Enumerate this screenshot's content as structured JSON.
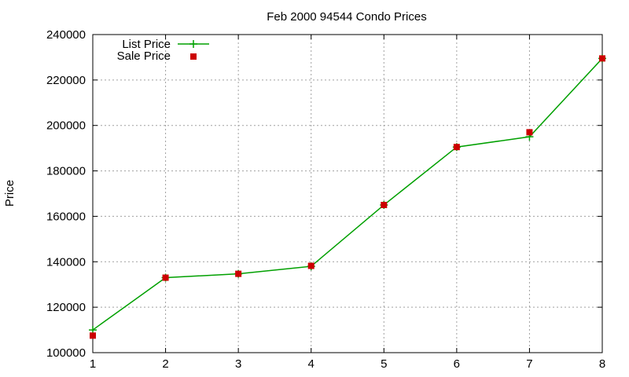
{
  "chart_data": {
    "type": "line",
    "title": "Feb 2000 94544 Condo Prices",
    "xlabel": "",
    "ylabel": "Price",
    "x": [
      1,
      2,
      3,
      4,
      5,
      6,
      7,
      8
    ],
    "xticks": [
      "1",
      "2",
      "3",
      "4",
      "5",
      "6",
      "7",
      "8"
    ],
    "yticks": [
      "100000",
      "120000",
      "140000",
      "160000",
      "180000",
      "200000",
      "220000",
      "240000"
    ],
    "xlim": [
      1,
      8
    ],
    "ylim": [
      100000,
      240000
    ],
    "grid": true,
    "legend_position": "top-left",
    "series": [
      {
        "name": "List Price",
        "style": "line-with-plus-markers",
        "color": "#00a000",
        "values": [
          110000,
          133000,
          134700,
          138000,
          165000,
          190500,
          195000,
          229500
        ]
      },
      {
        "name": "Sale Price",
        "style": "square-markers",
        "color": "#cc0000",
        "values": [
          107500,
          133000,
          134700,
          138200,
          165000,
          190500,
          197000,
          229500
        ]
      }
    ]
  }
}
